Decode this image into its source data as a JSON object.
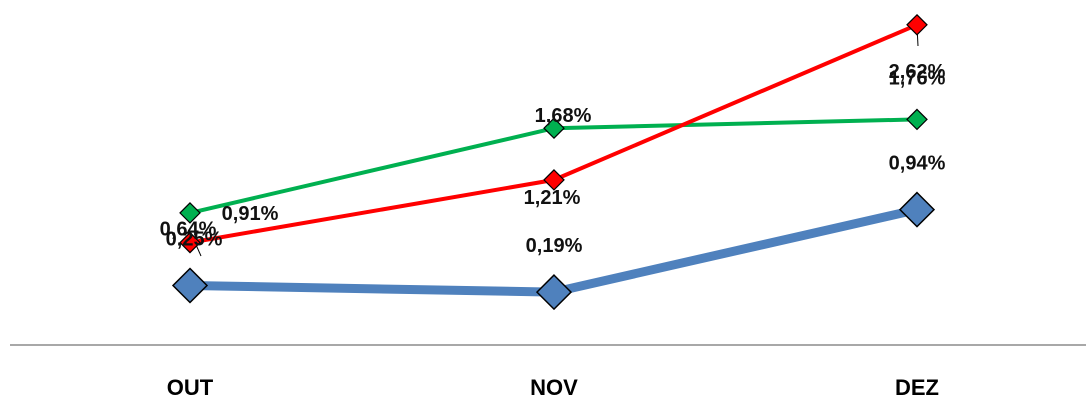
{
  "chart_data": {
    "type": "line",
    "categories": [
      "OUT",
      "NOV",
      "DEZ"
    ],
    "series": [
      {
        "values": [
          0.25,
          0.19,
          0.94
        ],
        "labels": [
          "0,25%",
          "0,19%",
          "0,94%"
        ],
        "color": "#4F81BD",
        "marker": "diamond"
      },
      {
        "values": [
          0.91,
          1.68,
          1.76
        ],
        "labels": [
          "0,91%",
          "1,68%",
          "1,76%"
        ],
        "color": "#00B050",
        "marker": "diamond"
      },
      {
        "values": [
          0.64,
          1.21,
          2.62
        ],
        "labels": [
          "0,64%",
          "1,21%",
          "2,62%"
        ],
        "color": "#FF0000",
        "marker": "diamond"
      }
    ],
    "ylabel": "",
    "xlabel": "",
    "grid": false,
    "legend": "none"
  }
}
